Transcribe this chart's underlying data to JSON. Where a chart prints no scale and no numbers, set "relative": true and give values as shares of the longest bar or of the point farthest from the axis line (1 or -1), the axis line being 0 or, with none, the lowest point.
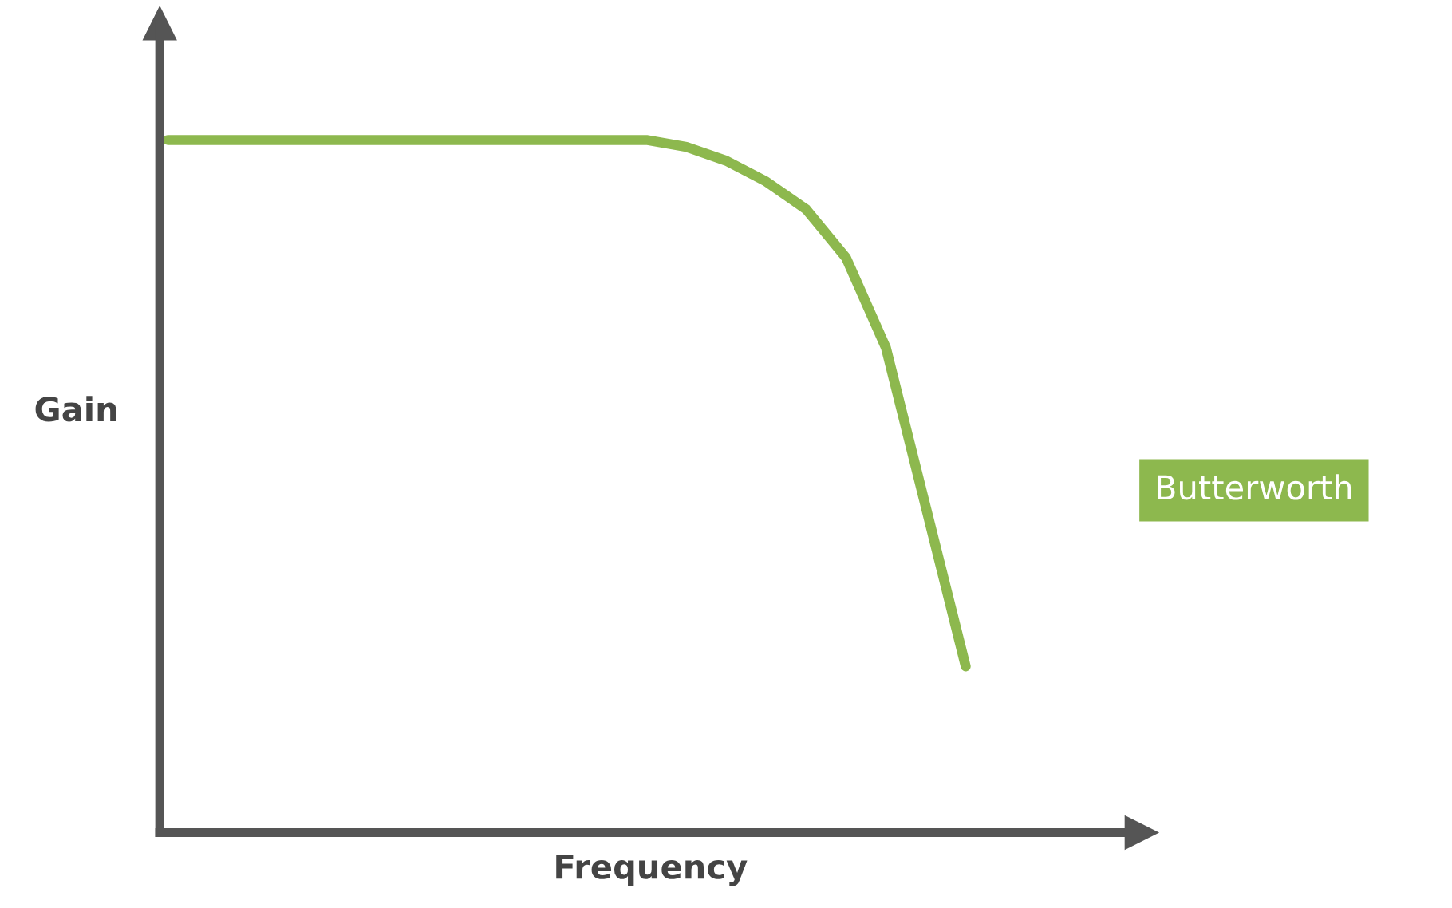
{
  "chart_data": {
    "type": "line",
    "xlabel": "Frequency",
    "ylabel": "Gain",
    "relative": true,
    "categories": [
      null,
      null,
      null,
      null,
      null,
      null,
      null,
      null,
      null,
      null,
      null,
      null,
      null,
      null,
      null,
      null,
      null,
      null,
      null,
      null,
      null
    ],
    "series": [
      {
        "name": "Butterworth",
        "color": "#8db84e",
        "values": [
          1.0,
          1.0,
          1.0,
          1.0,
          1.0,
          1.0,
          1.0,
          1.0,
          1.0,
          1.0,
          1.0,
          1.0,
          1.0,
          0.99,
          0.97,
          0.94,
          0.9,
          0.83,
          0.7,
          0.47,
          0.24
        ]
      }
    ],
    "legend": "right",
    "grid": false,
    "marker": "none",
    "line_style": "solid"
  }
}
